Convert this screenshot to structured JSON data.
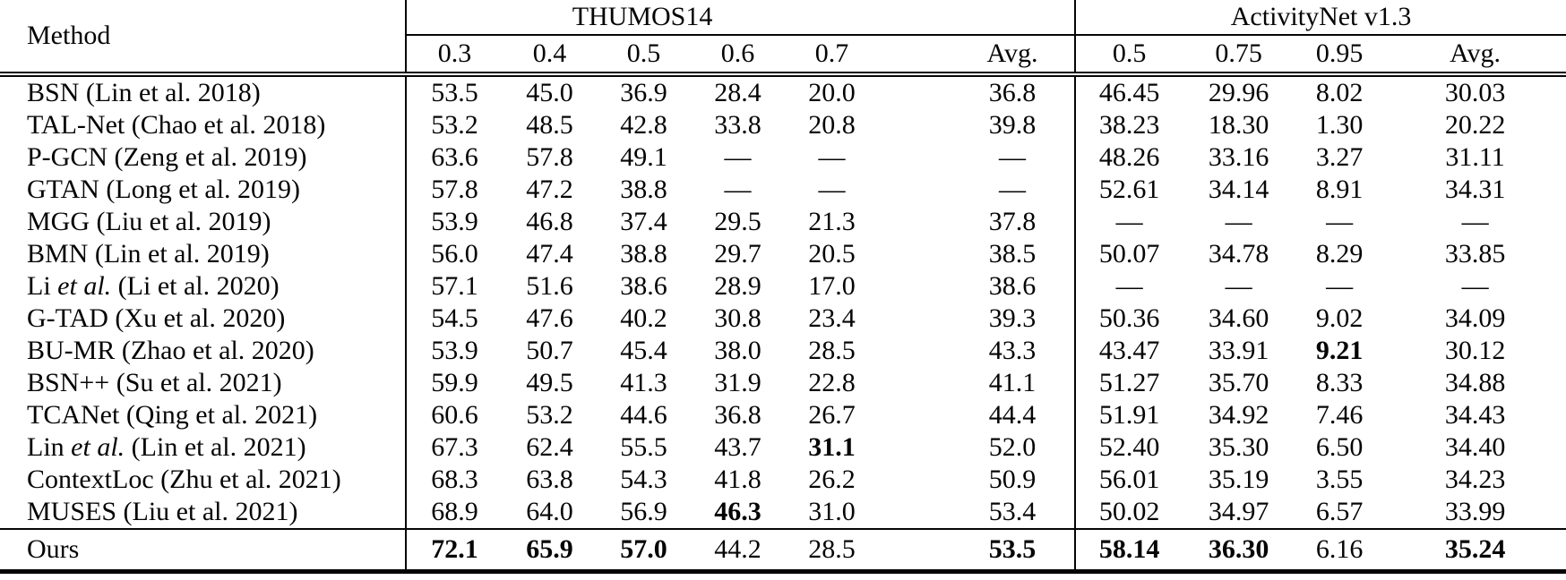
{
  "table": {
    "header": {
      "method_label": "Method",
      "groups": [
        {
          "label": "THUMOS14",
          "cols": [
            "0.3",
            "0.4",
            "0.5",
            "0.6",
            "0.7",
            "Avg."
          ]
        },
        {
          "label": "ActivityNet v1.3",
          "cols": [
            "0.5",
            "0.75",
            "0.95",
            "Avg."
          ]
        }
      ]
    },
    "rows": [
      {
        "method": {
          "pre": "BSN (Lin et al. 2018)",
          "it": "",
          "post": ""
        },
        "is_ours": false,
        "values": [
          {
            "t": "53.5",
            "b": false
          },
          {
            "t": "45.0",
            "b": false
          },
          {
            "t": "36.9",
            "b": false
          },
          {
            "t": "28.4",
            "b": false
          },
          {
            "t": "20.0",
            "b": false
          },
          {
            "t": "36.8",
            "b": false
          },
          {
            "t": "46.45",
            "b": false
          },
          {
            "t": "29.96",
            "b": false
          },
          {
            "t": "8.02",
            "b": false
          },
          {
            "t": "30.03",
            "b": false
          }
        ]
      },
      {
        "method": {
          "pre": "TAL-Net (Chao et al. 2018)",
          "it": "",
          "post": ""
        },
        "is_ours": false,
        "values": [
          {
            "t": "53.2",
            "b": false
          },
          {
            "t": "48.5",
            "b": false
          },
          {
            "t": "42.8",
            "b": false
          },
          {
            "t": "33.8",
            "b": false
          },
          {
            "t": "20.8",
            "b": false
          },
          {
            "t": "39.8",
            "b": false
          },
          {
            "t": "38.23",
            "b": false
          },
          {
            "t": "18.30",
            "b": false
          },
          {
            "t": "1.30",
            "b": false
          },
          {
            "t": "20.22",
            "b": false
          }
        ]
      },
      {
        "method": {
          "pre": "P-GCN (Zeng et al. 2019)",
          "it": "",
          "post": ""
        },
        "is_ours": false,
        "values": [
          {
            "t": "63.6",
            "b": false
          },
          {
            "t": "57.8",
            "b": false
          },
          {
            "t": "49.1",
            "b": false
          },
          {
            "t": "—",
            "b": false
          },
          {
            "t": "—",
            "b": false
          },
          {
            "t": "—",
            "b": false
          },
          {
            "t": "48.26",
            "b": false
          },
          {
            "t": "33.16",
            "b": false
          },
          {
            "t": "3.27",
            "b": false
          },
          {
            "t": "31.11",
            "b": false
          }
        ]
      },
      {
        "method": {
          "pre": "GTAN (Long et al. 2019)",
          "it": "",
          "post": ""
        },
        "is_ours": false,
        "values": [
          {
            "t": "57.8",
            "b": false
          },
          {
            "t": "47.2",
            "b": false
          },
          {
            "t": "38.8",
            "b": false
          },
          {
            "t": "—",
            "b": false
          },
          {
            "t": "—",
            "b": false
          },
          {
            "t": "—",
            "b": false
          },
          {
            "t": "52.61",
            "b": false
          },
          {
            "t": "34.14",
            "b": false
          },
          {
            "t": "8.91",
            "b": false
          },
          {
            "t": "34.31",
            "b": false
          }
        ]
      },
      {
        "method": {
          "pre": "MGG (Liu et al. 2019)",
          "it": "",
          "post": ""
        },
        "is_ours": false,
        "values": [
          {
            "t": "53.9",
            "b": false
          },
          {
            "t": "46.8",
            "b": false
          },
          {
            "t": "37.4",
            "b": false
          },
          {
            "t": "29.5",
            "b": false
          },
          {
            "t": "21.3",
            "b": false
          },
          {
            "t": "37.8",
            "b": false
          },
          {
            "t": "—",
            "b": false
          },
          {
            "t": "—",
            "b": false
          },
          {
            "t": "—",
            "b": false
          },
          {
            "t": "—",
            "b": false
          }
        ]
      },
      {
        "method": {
          "pre": "BMN (Lin et al. 2019)",
          "it": "",
          "post": ""
        },
        "is_ours": false,
        "values": [
          {
            "t": "56.0",
            "b": false
          },
          {
            "t": "47.4",
            "b": false
          },
          {
            "t": "38.8",
            "b": false
          },
          {
            "t": "29.7",
            "b": false
          },
          {
            "t": "20.5",
            "b": false
          },
          {
            "t": "38.5",
            "b": false
          },
          {
            "t": "50.07",
            "b": false
          },
          {
            "t": "34.78",
            "b": false
          },
          {
            "t": "8.29",
            "b": false
          },
          {
            "t": "33.85",
            "b": false
          }
        ]
      },
      {
        "method": {
          "pre": "Li ",
          "it": "et al.",
          "post": " (Li et al. 2020)"
        },
        "is_ours": false,
        "values": [
          {
            "t": "57.1",
            "b": false
          },
          {
            "t": "51.6",
            "b": false
          },
          {
            "t": "38.6",
            "b": false
          },
          {
            "t": "28.9",
            "b": false
          },
          {
            "t": "17.0",
            "b": false
          },
          {
            "t": "38.6",
            "b": false
          },
          {
            "t": "—",
            "b": false
          },
          {
            "t": "—",
            "b": false
          },
          {
            "t": "—",
            "b": false
          },
          {
            "t": "—",
            "b": false
          }
        ]
      },
      {
        "method": {
          "pre": "G-TAD (Xu et al. 2020)",
          "it": "",
          "post": ""
        },
        "is_ours": false,
        "values": [
          {
            "t": "54.5",
            "b": false
          },
          {
            "t": "47.6",
            "b": false
          },
          {
            "t": "40.2",
            "b": false
          },
          {
            "t": "30.8",
            "b": false
          },
          {
            "t": "23.4",
            "b": false
          },
          {
            "t": "39.3",
            "b": false
          },
          {
            "t": "50.36",
            "b": false
          },
          {
            "t": "34.60",
            "b": false
          },
          {
            "t": "9.02",
            "b": false
          },
          {
            "t": "34.09",
            "b": false
          }
        ]
      },
      {
        "method": {
          "pre": "BU-MR (Zhao et al. 2020)",
          "it": "",
          "post": ""
        },
        "is_ours": false,
        "values": [
          {
            "t": "53.9",
            "b": false
          },
          {
            "t": "50.7",
            "b": false
          },
          {
            "t": "45.4",
            "b": false
          },
          {
            "t": "38.0",
            "b": false
          },
          {
            "t": "28.5",
            "b": false
          },
          {
            "t": "43.3",
            "b": false
          },
          {
            "t": "43.47",
            "b": false
          },
          {
            "t": "33.91",
            "b": false
          },
          {
            "t": "9.21",
            "b": true
          },
          {
            "t": "30.12",
            "b": false
          }
        ]
      },
      {
        "method": {
          "pre": "BSN++ (Su et al. 2021)",
          "it": "",
          "post": ""
        },
        "is_ours": false,
        "values": [
          {
            "t": "59.9",
            "b": false
          },
          {
            "t": "49.5",
            "b": false
          },
          {
            "t": "41.3",
            "b": false
          },
          {
            "t": "31.9",
            "b": false
          },
          {
            "t": "22.8",
            "b": false
          },
          {
            "t": "41.1",
            "b": false
          },
          {
            "t": "51.27",
            "b": false
          },
          {
            "t": "35.70",
            "b": false
          },
          {
            "t": "8.33",
            "b": false
          },
          {
            "t": "34.88",
            "b": false
          }
        ]
      },
      {
        "method": {
          "pre": "TCANet (Qing et al. 2021)",
          "it": "",
          "post": ""
        },
        "is_ours": false,
        "values": [
          {
            "t": "60.6",
            "b": false
          },
          {
            "t": "53.2",
            "b": false
          },
          {
            "t": "44.6",
            "b": false
          },
          {
            "t": "36.8",
            "b": false
          },
          {
            "t": "26.7",
            "b": false
          },
          {
            "t": "44.4",
            "b": false
          },
          {
            "t": "51.91",
            "b": false
          },
          {
            "t": "34.92",
            "b": false
          },
          {
            "t": "7.46",
            "b": false
          },
          {
            "t": "34.43",
            "b": false
          }
        ]
      },
      {
        "method": {
          "pre": "Lin ",
          "it": "et al.",
          "post": " (Lin et al. 2021)"
        },
        "is_ours": false,
        "values": [
          {
            "t": "67.3",
            "b": false
          },
          {
            "t": "62.4",
            "b": false
          },
          {
            "t": "55.5",
            "b": false
          },
          {
            "t": "43.7",
            "b": false
          },
          {
            "t": "31.1",
            "b": true
          },
          {
            "t": "52.0",
            "b": false
          },
          {
            "t": "52.40",
            "b": false
          },
          {
            "t": "35.30",
            "b": false
          },
          {
            "t": "6.50",
            "b": false
          },
          {
            "t": "34.40",
            "b": false
          }
        ]
      },
      {
        "method": {
          "pre": "ContextLoc (Zhu et al. 2021)",
          "it": "",
          "post": ""
        },
        "is_ours": false,
        "values": [
          {
            "t": "68.3",
            "b": false
          },
          {
            "t": "63.8",
            "b": false
          },
          {
            "t": "54.3",
            "b": false
          },
          {
            "t": "41.8",
            "b": false
          },
          {
            "t": "26.2",
            "b": false
          },
          {
            "t": "50.9",
            "b": false
          },
          {
            "t": "56.01",
            "b": false
          },
          {
            "t": "35.19",
            "b": false
          },
          {
            "t": "3.55",
            "b": false
          },
          {
            "t": "34.23",
            "b": false
          }
        ]
      },
      {
        "method": {
          "pre": "MUSES (Liu et al. 2021)",
          "it": "",
          "post": ""
        },
        "is_ours": false,
        "values": [
          {
            "t": "68.9",
            "b": false
          },
          {
            "t": "64.0",
            "b": false
          },
          {
            "t": "56.9",
            "b": false
          },
          {
            "t": "46.3",
            "b": true
          },
          {
            "t": "31.0",
            "b": false
          },
          {
            "t": "53.4",
            "b": false
          },
          {
            "t": "50.02",
            "b": false
          },
          {
            "t": "34.97",
            "b": false
          },
          {
            "t": "6.57",
            "b": false
          },
          {
            "t": "33.99",
            "b": false
          }
        ]
      },
      {
        "method": {
          "pre": "Ours",
          "it": "",
          "post": ""
        },
        "is_ours": true,
        "values": [
          {
            "t": "72.1",
            "b": true
          },
          {
            "t": "65.9",
            "b": true
          },
          {
            "t": "57.0",
            "b": true
          },
          {
            "t": "44.2",
            "b": false
          },
          {
            "t": "28.5",
            "b": false
          },
          {
            "t": "53.5",
            "b": true
          },
          {
            "t": "58.14",
            "b": true
          },
          {
            "t": "36.30",
            "b": true
          },
          {
            "t": "6.16",
            "b": false
          },
          {
            "t": "35.24",
            "b": true
          }
        ]
      }
    ]
  },
  "colors": {
    "text": "#050505",
    "background": "#ffffff",
    "rule": "#050505"
  }
}
